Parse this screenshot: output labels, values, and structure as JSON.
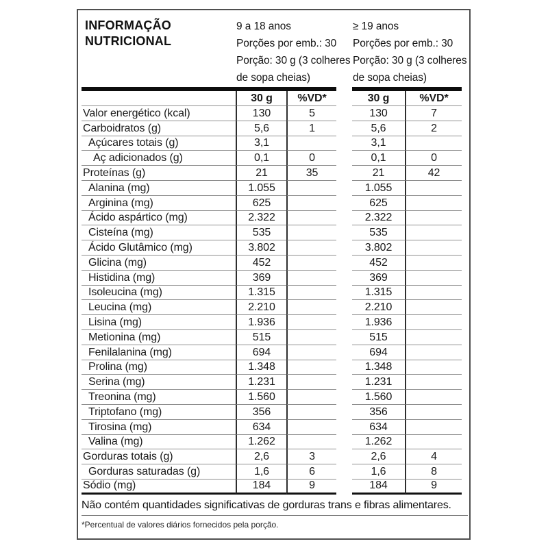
{
  "label": {
    "title_line1": "INFORMAÇÃO",
    "title_line2": "NUTRICIONAL",
    "groups": [
      {
        "age": "9 a 18 anos",
        "portions_per_pack": "Porções por emb.: 30",
        "portion_line1": "Porção: 30 g (3 colheres",
        "portion_line2": "de sopa cheias)"
      },
      {
        "age": "≥ 19 anos",
        "portions_per_pack": "Porções por emb.: 30",
        "portion_line1": "Porção: 30 g (3 colheres",
        "portion_line2": "de sopa cheias)"
      }
    ],
    "col_headers": {
      "amount": "30 g",
      "dv": "%VD*"
    },
    "rows": [
      {
        "name": "Valor energético (kcal)",
        "indent": 0,
        "g1": {
          "amount": "130",
          "dv": "5"
        },
        "g2": {
          "amount": "130",
          "dv": "7"
        }
      },
      {
        "name": "Carboidratos (g)",
        "indent": 0,
        "g1": {
          "amount": "5,6",
          "dv": "1"
        },
        "g2": {
          "amount": "5,6",
          "dv": "2"
        }
      },
      {
        "name": "Açúcares totais (g)",
        "indent": 1,
        "g1": {
          "amount": "3,1",
          "dv": ""
        },
        "g2": {
          "amount": "3,1",
          "dv": ""
        }
      },
      {
        "name": "Aç adicionados (g)",
        "indent": 2,
        "g1": {
          "amount": "0,1",
          "dv": "0"
        },
        "g2": {
          "amount": "0,1",
          "dv": "0"
        }
      },
      {
        "name": "Proteínas (g)",
        "indent": 0,
        "g1": {
          "amount": "21",
          "dv": "35"
        },
        "g2": {
          "amount": "21",
          "dv": "42"
        }
      },
      {
        "name": "Alanina (mg)",
        "indent": 1,
        "g1": {
          "amount": "1.055",
          "dv": ""
        },
        "g2": {
          "amount": "1.055",
          "dv": ""
        }
      },
      {
        "name": "Arginina (mg)",
        "indent": 1,
        "g1": {
          "amount": "625",
          "dv": ""
        },
        "g2": {
          "amount": "625",
          "dv": ""
        }
      },
      {
        "name": "Ácido aspártico (mg)",
        "indent": 1,
        "g1": {
          "amount": "2.322",
          "dv": ""
        },
        "g2": {
          "amount": "2.322",
          "dv": ""
        }
      },
      {
        "name": "Cisteína (mg)",
        "indent": 1,
        "g1": {
          "amount": "535",
          "dv": ""
        },
        "g2": {
          "amount": "535",
          "dv": ""
        }
      },
      {
        "name": "Ácido Glutâmico (mg)",
        "indent": 1,
        "g1": {
          "amount": "3.802",
          "dv": ""
        },
        "g2": {
          "amount": "3.802",
          "dv": ""
        }
      },
      {
        "name": "Glicina (mg)",
        "indent": 1,
        "g1": {
          "amount": "452",
          "dv": ""
        },
        "g2": {
          "amount": "452",
          "dv": ""
        }
      },
      {
        "name": "Histidina (mg)",
        "indent": 1,
        "g1": {
          "amount": "369",
          "dv": ""
        },
        "g2": {
          "amount": "369",
          "dv": ""
        }
      },
      {
        "name": "Isoleucina (mg)",
        "indent": 1,
        "g1": {
          "amount": "1.315",
          "dv": ""
        },
        "g2": {
          "amount": "1.315",
          "dv": ""
        }
      },
      {
        "name": "Leucina (mg)",
        "indent": 1,
        "g1": {
          "amount": "2.210",
          "dv": ""
        },
        "g2": {
          "amount": "2.210",
          "dv": ""
        }
      },
      {
        "name": "Lisina (mg)",
        "indent": 1,
        "g1": {
          "amount": "1.936",
          "dv": ""
        },
        "g2": {
          "amount": "1.936",
          "dv": ""
        }
      },
      {
        "name": "Metionina (mg)",
        "indent": 1,
        "g1": {
          "amount": "515",
          "dv": ""
        },
        "g2": {
          "amount": "515",
          "dv": ""
        }
      },
      {
        "name": "Fenilalanina (mg)",
        "indent": 1,
        "g1": {
          "amount": "694",
          "dv": ""
        },
        "g2": {
          "amount": "694",
          "dv": ""
        }
      },
      {
        "name": "Prolina (mg)",
        "indent": 1,
        "g1": {
          "amount": "1.348",
          "dv": ""
        },
        "g2": {
          "amount": "1.348",
          "dv": ""
        }
      },
      {
        "name": "Serina (mg)",
        "indent": 1,
        "g1": {
          "amount": "1.231",
          "dv": ""
        },
        "g2": {
          "amount": "1.231",
          "dv": ""
        }
      },
      {
        "name": "Treonina (mg)",
        "indent": 1,
        "g1": {
          "amount": "1.560",
          "dv": ""
        },
        "g2": {
          "amount": "1.560",
          "dv": ""
        }
      },
      {
        "name": "Triptofano (mg)",
        "indent": 1,
        "g1": {
          "amount": "356",
          "dv": ""
        },
        "g2": {
          "amount": "356",
          "dv": ""
        }
      },
      {
        "name": "Tirosina (mg)",
        "indent": 1,
        "g1": {
          "amount": "634",
          "dv": ""
        },
        "g2": {
          "amount": "634",
          "dv": ""
        }
      },
      {
        "name": "Valina (mg)",
        "indent": 1,
        "g1": {
          "amount": "1.262",
          "dv": ""
        },
        "g2": {
          "amount": "1.262",
          "dv": ""
        }
      },
      {
        "name": "Gorduras totais (g)",
        "indent": 0,
        "g1": {
          "amount": "2,6",
          "dv": "3"
        },
        "g2": {
          "amount": "2,6",
          "dv": "4"
        }
      },
      {
        "name": "Gorduras saturadas (g)",
        "indent": 1,
        "g1": {
          "amount": "1,6",
          "dv": "6"
        },
        "g2": {
          "amount": "1,6",
          "dv": "8"
        }
      },
      {
        "name": "Sódio (mg)",
        "indent": 0,
        "g1": {
          "amount": "184",
          "dv": "9"
        },
        "g2": {
          "amount": "184",
          "dv": "9"
        }
      }
    ],
    "note": "Não contém quantidades significativas de gorduras trans e fibras alimentares.",
    "footnote": "*Percentual de valores diários fornecidos pela porção."
  },
  "colors": {
    "background": "#ffffff",
    "text": "#1a1a1a",
    "outer_border": "#4f4f4f",
    "thick_bar": "#0d0d0d",
    "row_line": "#8e8e8e",
    "column_line": "#2e2e2e"
  }
}
